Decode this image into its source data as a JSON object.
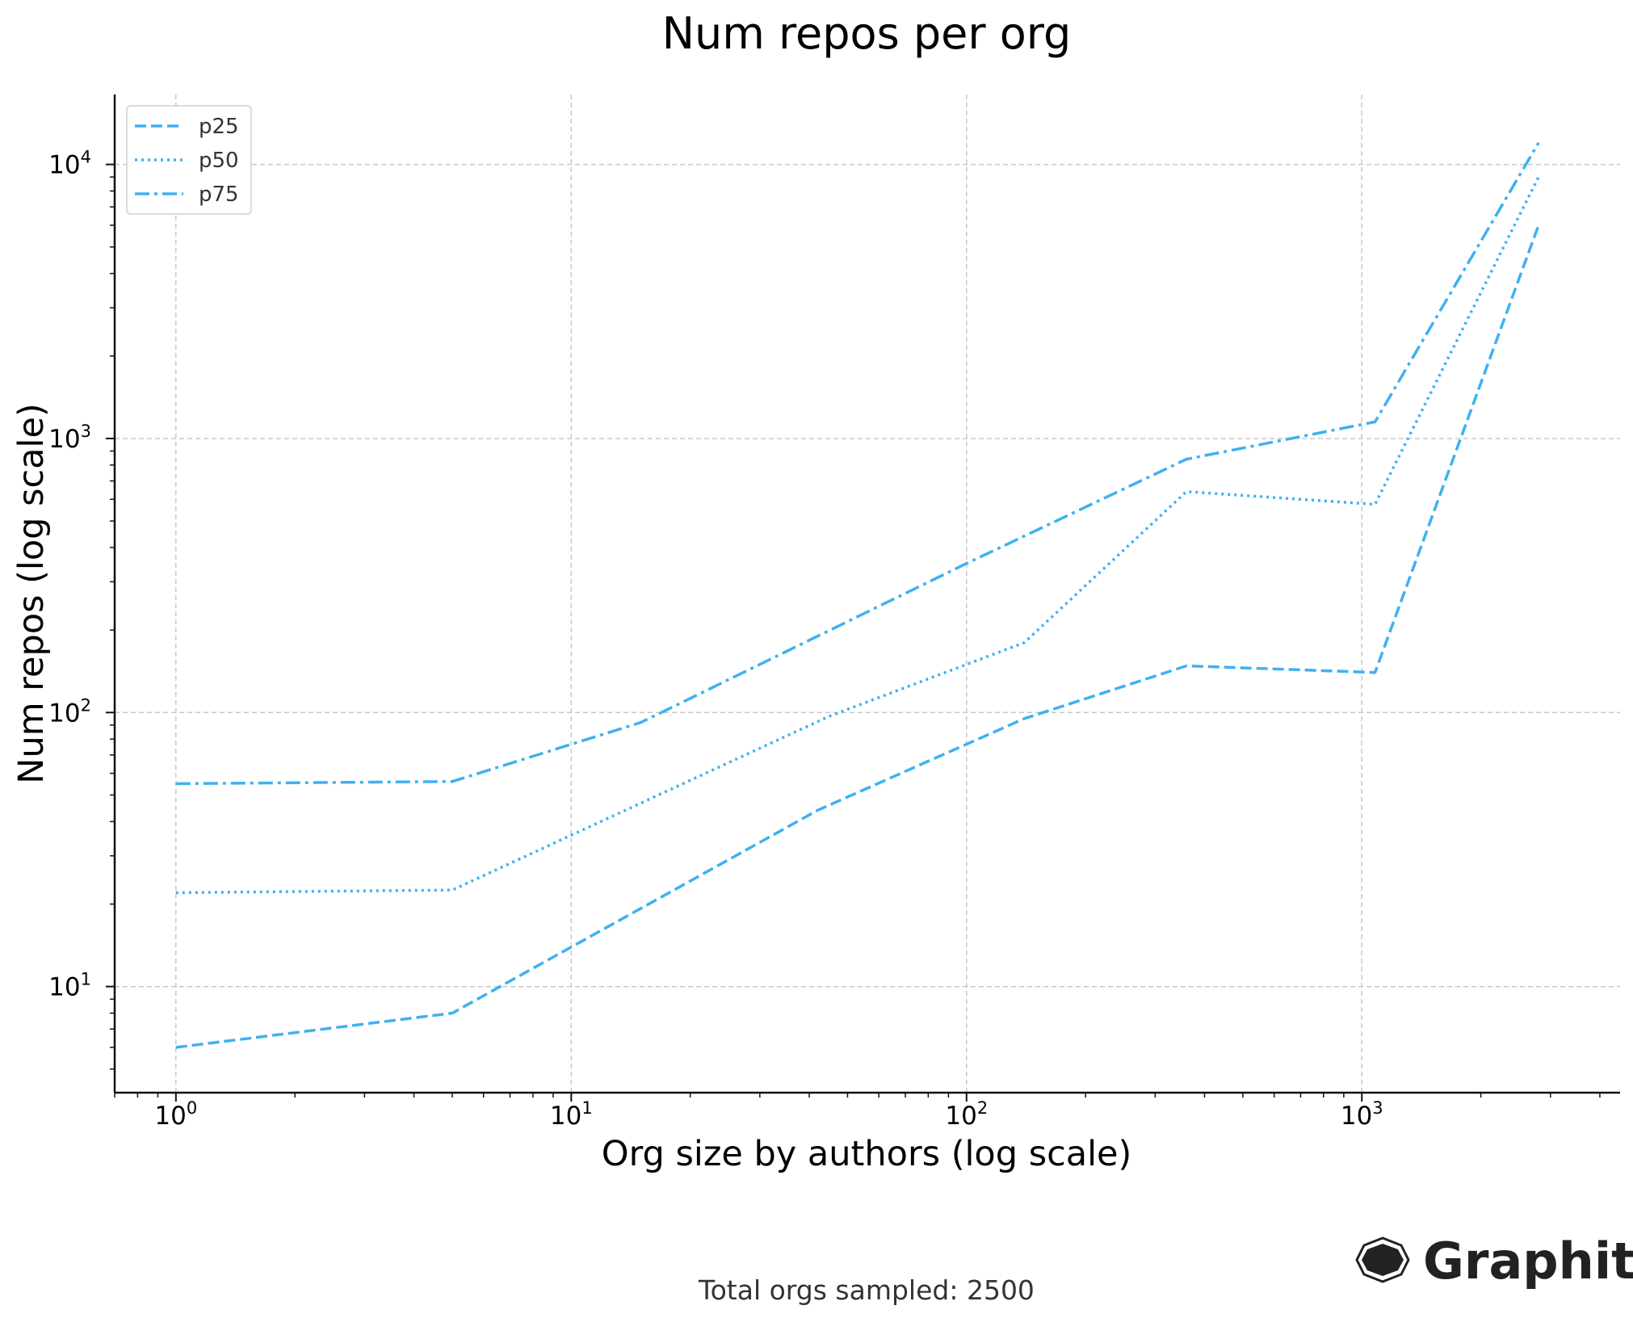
{
  "chart_data": {
    "type": "line",
    "title": "Num repos per org",
    "xlabel": "Org size by authors (log scale)",
    "ylabel": "Num repos (log scale)",
    "xscale": "log",
    "yscale": "log",
    "xlim": [
      0.7,
      4500
    ],
    "ylim": [
      4.1,
      18000
    ],
    "xticks": [
      {
        "base": "10",
        "exp": "0",
        "value": 1
      },
      {
        "base": "10",
        "exp": "1",
        "value": 10
      },
      {
        "base": "10",
        "exp": "2",
        "value": 100
      },
      {
        "base": "10",
        "exp": "3",
        "value": 1000
      }
    ],
    "yticks": [
      {
        "base": "10",
        "exp": "1",
        "value": 10
      },
      {
        "base": "10",
        "exp": "2",
        "value": 100
      },
      {
        "base": "10",
        "exp": "3",
        "value": 1000
      },
      {
        "base": "10",
        "exp": "4",
        "value": 10000
      }
    ],
    "grid": true,
    "legend_position": "top-left",
    "color": "#3eb1f0",
    "series": [
      {
        "name": "p25",
        "style": "dashed",
        "x": [
          1,
          5,
          42,
          140,
          360,
          1080,
          2800
        ],
        "y": [
          6,
          8,
          44,
          95,
          148,
          140,
          6000
        ]
      },
      {
        "name": "p50",
        "style": "dotted",
        "x": [
          1,
          5,
          45,
          140,
          360,
          1080,
          2800
        ],
        "y": [
          22,
          22.5,
          97,
          180,
          640,
          575,
          9000
        ]
      },
      {
        "name": "p75",
        "style": "dashdot",
        "x": [
          1,
          5,
          15,
          100,
          360,
          1080,
          2800
        ],
        "y": [
          55,
          56,
          92,
          350,
          840,
          1150,
          12000
        ]
      }
    ]
  },
  "footer": "Total orgs sampled: 2500",
  "logo": {
    "text": "Graphite",
    "icon": "graphite-hexagon-icon"
  }
}
